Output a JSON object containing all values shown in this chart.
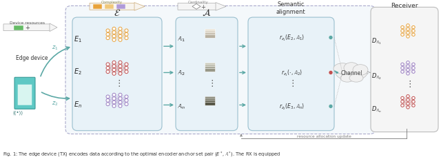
{
  "bg_color": "#ffffff",
  "teal": "#5ba8a5",
  "orange": "#e8a23a",
  "purple": "#9b7fc2",
  "red": "#c05050",
  "gray": "#aaaaaa",
  "dark_gray": "#777777",
  "box_blue_face": "#e8f2f8",
  "box_blue_edge": "#9abfce",
  "receiver_face": "#f5f5f5",
  "receiver_edge": "#bbbbbb",
  "outer_face": "#f4f8fb",
  "outer_edge": "#aaaacc",
  "caption": "Fig. 1: The edge device (TX) encodes data according to the optimal encoder anchor set pair $(E^*, \\mathbb{A}^*)$. The RX is equipped",
  "resource_text": "resource allocation update",
  "complexity_text": "Complexity",
  "cardinality_text": "Cardinality"
}
